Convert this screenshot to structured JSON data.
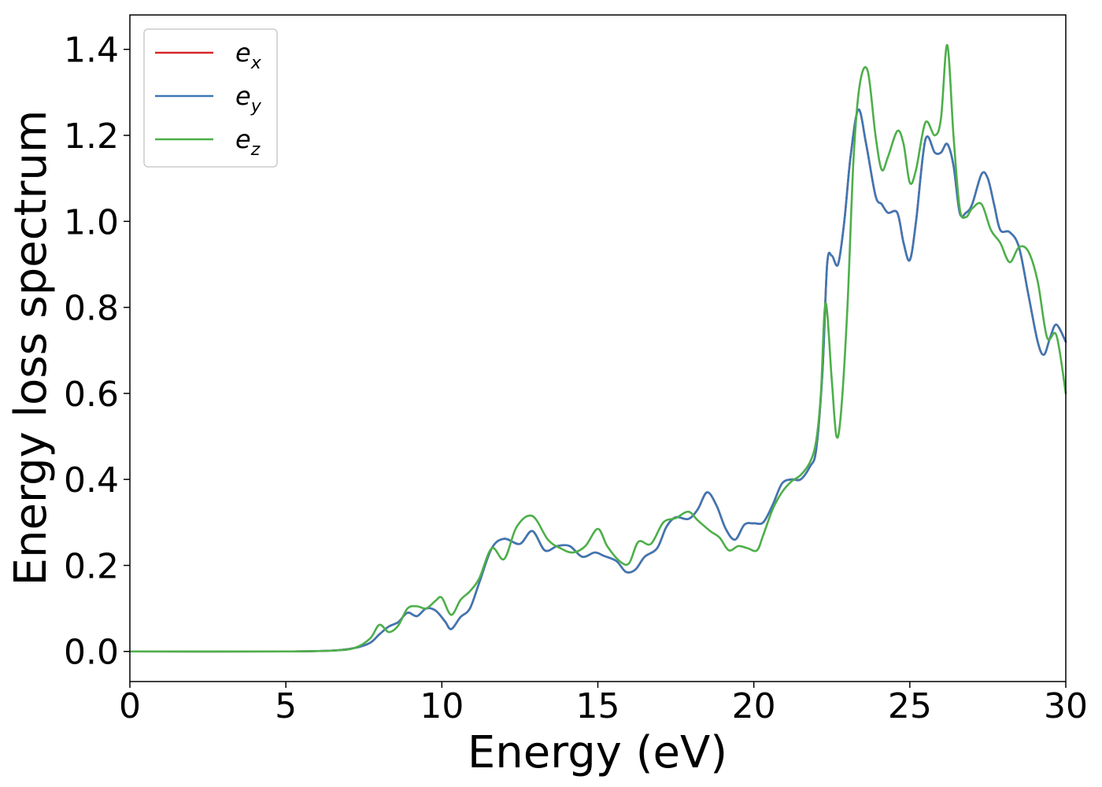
{
  "chart_data": {
    "type": "line",
    "xlabel": "Energy (eV)",
    "ylabel": "Energy loss spectrum",
    "xlim": [
      0,
      30
    ],
    "ylim": [
      -0.07,
      1.48
    ],
    "xticks": [
      0,
      5,
      10,
      15,
      20,
      25,
      30
    ],
    "xtick_labels": [
      "0",
      "5",
      "10",
      "15",
      "20",
      "25",
      "30"
    ],
    "yticks": [
      0.0,
      0.2,
      0.4,
      0.6,
      0.8,
      1.0,
      1.2,
      1.4
    ],
    "ytick_labels": [
      "0.0",
      "0.2",
      "0.4",
      "0.6",
      "0.8",
      "1.0",
      "1.2",
      "1.4"
    ],
    "grid": false,
    "legend_position": "top-left",
    "series": [
      {
        "name": "e",
        "subscript": "x",
        "color": "#d62728",
        "x": [
          0,
          5,
          6.5,
          7.2,
          7.7,
          8.0,
          8.3,
          8.6,
          8.9,
          9.2,
          9.5,
          9.8,
          10.1,
          10.3,
          10.6,
          10.9,
          11.2,
          11.6,
          12.0,
          12.5,
          12.9,
          13.3,
          13.7,
          14.1,
          14.5,
          14.9,
          15.2,
          15.6,
          15.9,
          16.2,
          16.5,
          16.9,
          17.2,
          17.5,
          17.9,
          18.2,
          18.5,
          18.8,
          19.1,
          19.4,
          19.7,
          20.0,
          20.3,
          20.6,
          20.9,
          21.2,
          21.5,
          21.8,
          22.0,
          22.2,
          22.35,
          22.5,
          22.7,
          22.9,
          23.1,
          23.35,
          23.6,
          23.9,
          24.1,
          24.3,
          24.6,
          24.8,
          25.0,
          25.2,
          25.5,
          25.8,
          26.0,
          26.2,
          26.4,
          26.6,
          26.8,
          27.0,
          27.3,
          27.5,
          27.7,
          27.9,
          28.2,
          28.5,
          28.8,
          29.1,
          29.3,
          29.5,
          29.7,
          30.0
        ],
        "values": [
          0.0,
          0.0,
          0.002,
          0.008,
          0.02,
          0.04,
          0.058,
          0.068,
          0.09,
          0.082,
          0.1,
          0.095,
          0.07,
          0.052,
          0.08,
          0.1,
          0.16,
          0.24,
          0.262,
          0.25,
          0.28,
          0.235,
          0.245,
          0.245,
          0.22,
          0.23,
          0.222,
          0.21,
          0.185,
          0.19,
          0.22,
          0.24,
          0.29,
          0.312,
          0.308,
          0.33,
          0.37,
          0.34,
          0.285,
          0.26,
          0.295,
          0.298,
          0.3,
          0.34,
          0.39,
          0.4,
          0.4,
          0.43,
          0.47,
          0.65,
          0.9,
          0.92,
          0.9,
          1.0,
          1.15,
          1.26,
          1.18,
          1.06,
          1.04,
          1.02,
          1.02,
          0.95,
          0.91,
          1.0,
          1.19,
          1.16,
          1.16,
          1.18,
          1.13,
          1.02,
          1.02,
          1.04,
          1.11,
          1.1,
          1.04,
          0.98,
          0.975,
          0.94,
          0.83,
          0.72,
          0.69,
          0.73,
          0.76,
          0.72
        ]
      },
      {
        "name": "e",
        "subscript": "y",
        "color": "#3d77b4",
        "x": [
          0,
          5,
          6.5,
          7.2,
          7.7,
          8.0,
          8.3,
          8.6,
          8.9,
          9.2,
          9.5,
          9.8,
          10.1,
          10.3,
          10.6,
          10.9,
          11.2,
          11.6,
          12.0,
          12.5,
          12.9,
          13.3,
          13.7,
          14.1,
          14.5,
          14.9,
          15.2,
          15.6,
          15.9,
          16.2,
          16.5,
          16.9,
          17.2,
          17.5,
          17.9,
          18.2,
          18.5,
          18.8,
          19.1,
          19.4,
          19.7,
          20.0,
          20.3,
          20.6,
          20.9,
          21.2,
          21.5,
          21.8,
          22.0,
          22.2,
          22.35,
          22.5,
          22.7,
          22.9,
          23.1,
          23.35,
          23.6,
          23.9,
          24.1,
          24.3,
          24.6,
          24.8,
          25.0,
          25.2,
          25.5,
          25.8,
          26.0,
          26.2,
          26.4,
          26.6,
          26.8,
          27.0,
          27.3,
          27.5,
          27.7,
          27.9,
          28.2,
          28.5,
          28.8,
          29.1,
          29.3,
          29.5,
          29.7,
          30.0
        ],
        "values": [
          0.0,
          0.0,
          0.002,
          0.008,
          0.02,
          0.04,
          0.058,
          0.068,
          0.09,
          0.082,
          0.1,
          0.095,
          0.07,
          0.052,
          0.08,
          0.1,
          0.16,
          0.24,
          0.262,
          0.25,
          0.28,
          0.235,
          0.245,
          0.245,
          0.22,
          0.23,
          0.222,
          0.21,
          0.185,
          0.19,
          0.22,
          0.24,
          0.29,
          0.312,
          0.308,
          0.33,
          0.37,
          0.34,
          0.285,
          0.26,
          0.295,
          0.298,
          0.3,
          0.34,
          0.39,
          0.4,
          0.4,
          0.43,
          0.47,
          0.65,
          0.9,
          0.92,
          0.9,
          1.0,
          1.15,
          1.26,
          1.18,
          1.06,
          1.04,
          1.02,
          1.02,
          0.95,
          0.91,
          1.0,
          1.19,
          1.16,
          1.16,
          1.18,
          1.13,
          1.02,
          1.02,
          1.04,
          1.11,
          1.1,
          1.04,
          0.98,
          0.975,
          0.94,
          0.83,
          0.72,
          0.69,
          0.73,
          0.76,
          0.72
        ]
      },
      {
        "name": "e",
        "subscript": "z",
        "color": "#4daf4a",
        "x": [
          0,
          5,
          6.5,
          7.2,
          7.7,
          8.0,
          8.3,
          8.6,
          8.9,
          9.2,
          9.5,
          9.8,
          10.0,
          10.3,
          10.6,
          10.9,
          11.2,
          11.6,
          12.0,
          12.4,
          12.9,
          13.4,
          13.8,
          14.2,
          14.6,
          15.0,
          15.3,
          15.7,
          16.0,
          16.3,
          16.7,
          17.1,
          17.5,
          17.9,
          18.2,
          18.6,
          18.9,
          19.2,
          19.5,
          19.8,
          20.1,
          20.3,
          20.6,
          20.9,
          21.2,
          21.5,
          21.8,
          22.0,
          22.15,
          22.3,
          22.5,
          22.65,
          22.8,
          23.0,
          23.2,
          23.4,
          23.65,
          23.9,
          24.1,
          24.3,
          24.6,
          24.8,
          25.0,
          25.2,
          25.5,
          25.8,
          26.0,
          26.2,
          26.4,
          26.6,
          26.8,
          27.0,
          27.3,
          27.6,
          27.9,
          28.2,
          28.5,
          28.8,
          29.1,
          29.4,
          29.7,
          30.0
        ],
        "values": [
          0.0,
          0.0,
          0.002,
          0.008,
          0.03,
          0.062,
          0.045,
          0.06,
          0.1,
          0.105,
          0.1,
          0.118,
          0.125,
          0.085,
          0.12,
          0.14,
          0.17,
          0.24,
          0.215,
          0.29,
          0.315,
          0.26,
          0.24,
          0.23,
          0.245,
          0.285,
          0.245,
          0.21,
          0.205,
          0.255,
          0.25,
          0.3,
          0.31,
          0.325,
          0.305,
          0.28,
          0.265,
          0.235,
          0.245,
          0.24,
          0.235,
          0.27,
          0.33,
          0.37,
          0.395,
          0.41,
          0.44,
          0.49,
          0.6,
          0.81,
          0.63,
          0.5,
          0.56,
          0.8,
          1.15,
          1.32,
          1.35,
          1.2,
          1.12,
          1.15,
          1.21,
          1.18,
          1.09,
          1.12,
          1.23,
          1.2,
          1.24,
          1.41,
          1.2,
          1.03,
          1.01,
          1.03,
          1.04,
          0.98,
          0.95,
          0.905,
          0.94,
          0.93,
          0.86,
          0.73,
          0.735,
          0.6
        ]
      }
    ]
  }
}
